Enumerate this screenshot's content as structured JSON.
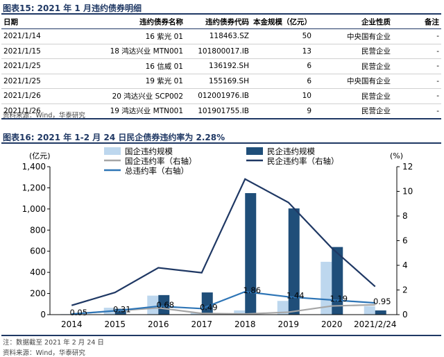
{
  "fig15": {
    "title": "图表15:  2021 年 1 月违约债券明细",
    "headers": [
      "日期",
      "违约债券名称",
      "违约债券代码",
      "本金规模（亿元）",
      "企业性质",
      "备注"
    ],
    "rows": [
      [
        "2021/1/14",
        "16 紫光 01",
        "118463.SZ",
        "50",
        "中央国有企业",
        "-"
      ],
      [
        "2021/1/15",
        "18 鸿达兴业 MTN001",
        "101800017.IB",
        "13",
        "民营企业",
        "-"
      ],
      [
        "2021/1/25",
        "16 信威 01",
        "136192.SH",
        "6",
        "民营企业",
        "-"
      ],
      [
        "2021/1/25",
        "19 紫光 01",
        "155169.SH",
        "6",
        "中央国有企业",
        "-"
      ],
      [
        "2021/1/26",
        "20 鸿达兴业 SCP002",
        "012001976.IB",
        "10",
        "民营企业",
        "-"
      ],
      [
        "2021/1/26",
        "19 鸿达兴业 MTN001",
        "101901755.IB",
        "9",
        "民营企业",
        "-"
      ]
    ],
    "source": "资料来源：Wind，华泰研究"
  },
  "fig16": {
    "title": "图表16:  2021 年 1-2 月 24 日民企债券违约率为 2.28%",
    "note": "注：数据截至 2021 年 2 月 24 日",
    "source": "资料来源：Wind，华泰研究"
  },
  "chart_data": {
    "type": "bar",
    "categories": [
      "2014",
      "2015",
      "2016",
      "2017",
      "2018",
      "2019",
      "2020",
      "2021/2/24"
    ],
    "ylabel_left": "(亿元)",
    "ylabel_right": "(%)",
    "ylim_left": [
      0,
      1400
    ],
    "yticks_left": [
      "0",
      "200",
      "400",
      "600",
      "800",
      "1,000",
      "1,200",
      "1,400"
    ],
    "ylim_right": [
      0,
      12
    ],
    "yticks_right": [
      "0",
      "2",
      "4",
      "6",
      "8",
      "10",
      "12"
    ],
    "legend": {
      "soe_bar": "国企违约规模",
      "pe_bar": "民企违约规模",
      "soe_rate": "国企违约率（右轴）",
      "pe_rate": "民企违约率（右轴）",
      "total_rate": "总违约率（右轴）"
    },
    "bar_series": [
      {
        "key": "soe_bar",
        "color": "#bdd7ee",
        "values": [
          5,
          65,
          180,
          20,
          40,
          130,
          500,
          80
        ]
      },
      {
        "key": "pe_bar",
        "color": "#1f4e79",
        "values": [
          3,
          55,
          185,
          210,
          1150,
          1005,
          640,
          40
        ]
      }
    ],
    "line_series": [
      {
        "key": "soe_rate",
        "color": "#a6a6a6",
        "values": [
          0.05,
          0.3,
          0.55,
          0.1,
          0.05,
          0.2,
          0.7,
          0.8
        ]
      },
      {
        "key": "pe_rate",
        "color": "#1f3864",
        "values": [
          0.75,
          1.8,
          3.8,
          3.4,
          11.0,
          9.1,
          5.4,
          2.28
        ]
      },
      {
        "key": "total_rate",
        "color": "#2e75b6",
        "values": [
          0.05,
          0.31,
          0.68,
          0.49,
          1.86,
          1.44,
          1.19,
          0.95
        ]
      }
    ],
    "data_labels": [
      "0.05",
      "0.31",
      "0.68",
      "0.49",
      "1.86",
      "1.44",
      "1.19",
      "0.95"
    ]
  }
}
